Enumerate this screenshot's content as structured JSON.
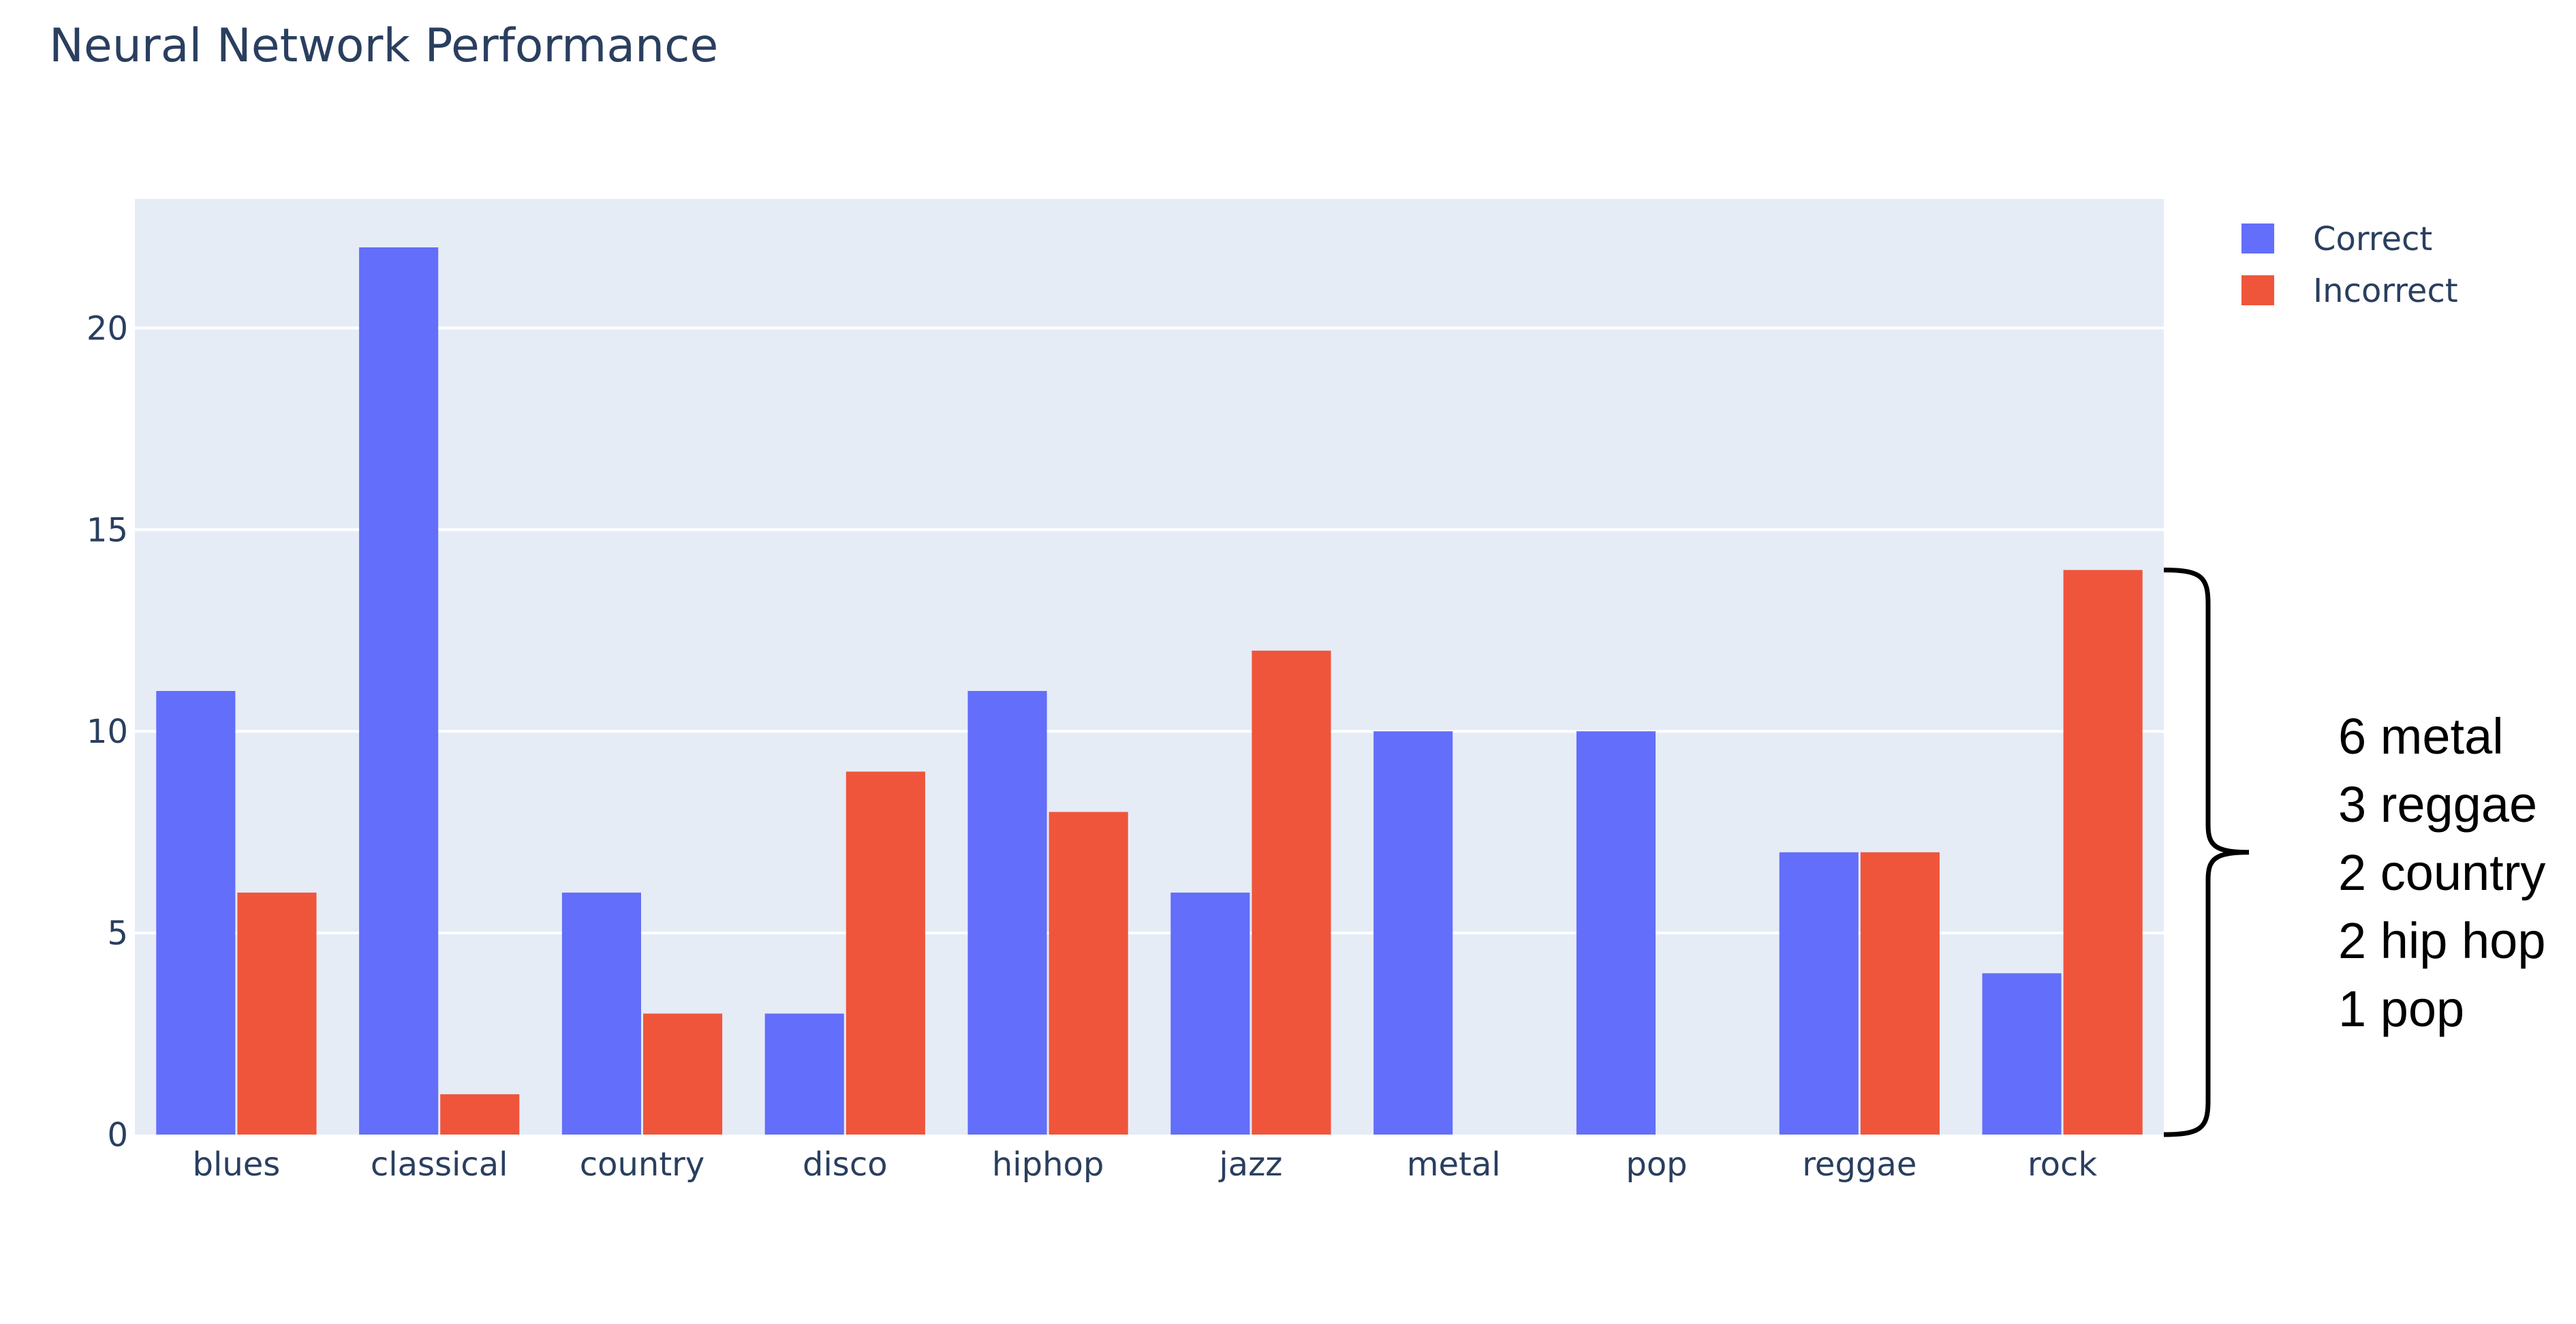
{
  "chart_data": {
    "type": "bar",
    "title": "Neural Network Performance",
    "xlabel": "",
    "ylabel": "",
    "categories": [
      "blues",
      "classical",
      "country",
      "disco",
      "hiphop",
      "jazz",
      "metal",
      "pop",
      "reggae",
      "rock"
    ],
    "series": [
      {
        "name": "Correct",
        "color": "#636efa",
        "values": [
          11,
          22,
          6,
          3,
          11,
          6,
          10,
          10,
          7,
          4
        ]
      },
      {
        "name": "Incorrect",
        "color": "#ef553b",
        "values": [
          6,
          1,
          3,
          9,
          8,
          12,
          0,
          0,
          7,
          14
        ]
      }
    ],
    "ylim": [
      0,
      23.2
    ],
    "yticks": [
      0,
      5,
      10,
      15,
      20
    ],
    "grid": true,
    "legend_position": "top-right",
    "plot_background": "#e5ecf6",
    "annotation": {
      "target": "rock",
      "lines": [
        "6 metal",
        "3 reggae",
        "2 country",
        "2 hip hop",
        "1 pop"
      ]
    }
  }
}
